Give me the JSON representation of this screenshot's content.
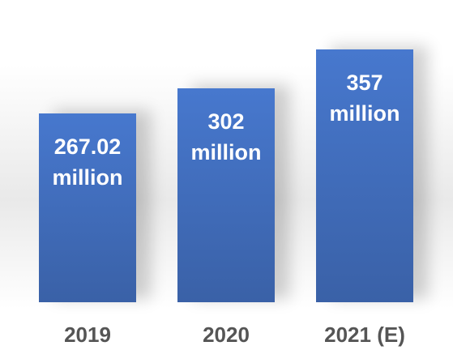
{
  "chart_data": {
    "type": "bar",
    "categories": [
      "2019",
      "2020",
      "2021 (E)"
    ],
    "values": [
      267.02,
      302,
      357
    ],
    "value_labels": [
      "267.02 million",
      "302 million",
      "357 million"
    ],
    "color": "#4472c4"
  }
}
